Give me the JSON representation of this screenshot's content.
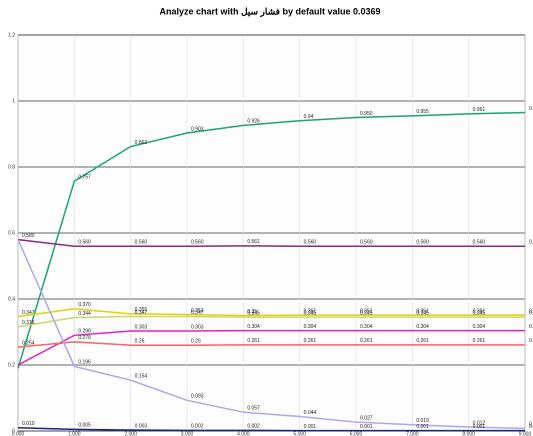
{
  "chart_data": {
    "type": "line",
    "title": "Analyze chart with فشار سیل by default value 0.0369",
    "x": [
      0,
      1,
      2,
      3,
      4,
      5,
      6,
      7,
      8,
      9
    ],
    "xlim": [
      0,
      9
    ],
    "xticks": [
      {
        "value": 0,
        "label": "0.000"
      },
      {
        "value": 1,
        "label": "1.000"
      },
      {
        "value": 2,
        "label": "2.000"
      },
      {
        "value": 3,
        "label": "3.000"
      },
      {
        "value": 4,
        "label": "4.000"
      },
      {
        "value": 5,
        "label": "5.000"
      },
      {
        "value": 6,
        "label": "6.000"
      },
      {
        "value": 7,
        "label": "7.000"
      },
      {
        "value": 8,
        "label": "8.000"
      },
      {
        "value": 9,
        "label": "9.000"
      }
    ],
    "ylim": [
      0,
      1.2
    ],
    "yticks": [
      0,
      0.2,
      0.4,
      0.6,
      0.8,
      1,
      1.2
    ],
    "grid": true,
    "series": [
      {
        "color": "#1aa37a",
        "values": [
          0.19,
          0.757,
          0.862,
          0.903,
          0.926,
          0.94,
          0.95,
          0.955,
          0.961,
          0.965
        ],
        "value_labels": [
          null,
          "0.757",
          "0.862",
          "0.903",
          "0.926",
          "0.94",
          "0.950",
          "0.955",
          "0.961",
          "0.965"
        ]
      },
      {
        "color": "#8b2a7a",
        "values": [
          0.58,
          0.56,
          0.56,
          0.56,
          0.561,
          0.56,
          0.56,
          0.56,
          0.56,
          0.56
        ],
        "value_labels": [
          "0.580",
          "0.560",
          "0.560",
          "0.560",
          "0.561",
          "0.560",
          "0.560",
          "0.560",
          "0.560",
          "0.560"
        ]
      },
      {
        "color": "#e6d000",
        "values": [
          0.347,
          0.37,
          0.355,
          0.353,
          0.35,
          0.351,
          0.351,
          0.351,
          0.351,
          0.351
        ],
        "value_labels": [
          "0.347",
          "0.370",
          "0.355",
          "0.353",
          "0.35",
          "0.351",
          "0.351",
          "0.351",
          "0.351",
          "0.351"
        ]
      },
      {
        "color": "#c8d86a",
        "values": [
          0.316,
          0.344,
          0.347,
          0.347,
          0.345,
          0.345,
          0.345,
          0.345,
          0.345,
          0.345
        ],
        "value_labels": [
          "0.316",
          "0.344",
          "0.347",
          "0.347",
          "0.345",
          "0.345",
          "0.345",
          "0.345",
          "0.345",
          "0.345"
        ]
      },
      {
        "color": "#e020c0",
        "values": [
          0.2,
          0.29,
          0.303,
          0.303,
          0.304,
          0.304,
          0.304,
          0.304,
          0.304,
          0.304
        ],
        "value_labels": [
          null,
          "0.290",
          "0.303",
          "0.303",
          "0.304",
          "0.304",
          "0.304",
          "0.304",
          "0.304",
          "0.304"
        ]
      },
      {
        "color": "#ff6060",
        "values": [
          0.254,
          0.27,
          0.26,
          0.26,
          0.261,
          0.261,
          0.261,
          0.261,
          0.261,
          0.261
        ],
        "value_labels": [
          "0.254",
          "0.270",
          "0.26",
          "0.26",
          "0.261",
          "0.261",
          "0.261",
          "0.261",
          "0.261",
          "0.261"
        ]
      },
      {
        "color": "#a9a9f0",
        "values": [
          0.58,
          0.196,
          0.154,
          0.093,
          0.057,
          0.044,
          0.027,
          0.019,
          0.012,
          0.008
        ],
        "value_labels": [
          null,
          "0.196",
          "0.154",
          "0.093",
          "0.057",
          "0.044",
          "0.027",
          "0.019",
          "0.012",
          "0.008"
        ]
      },
      {
        "color": "#1a237e",
        "values": [
          0.01,
          0.005,
          0.003,
          0.002,
          0.002,
          0.001,
          0.001,
          0.001,
          0.001,
          0.001
        ],
        "value_labels": [
          "0.010",
          "0.005",
          "0.003",
          "0.002",
          "0.002",
          "0.001",
          "0.001",
          "0.001",
          "0.001",
          "0.001"
        ]
      }
    ]
  }
}
